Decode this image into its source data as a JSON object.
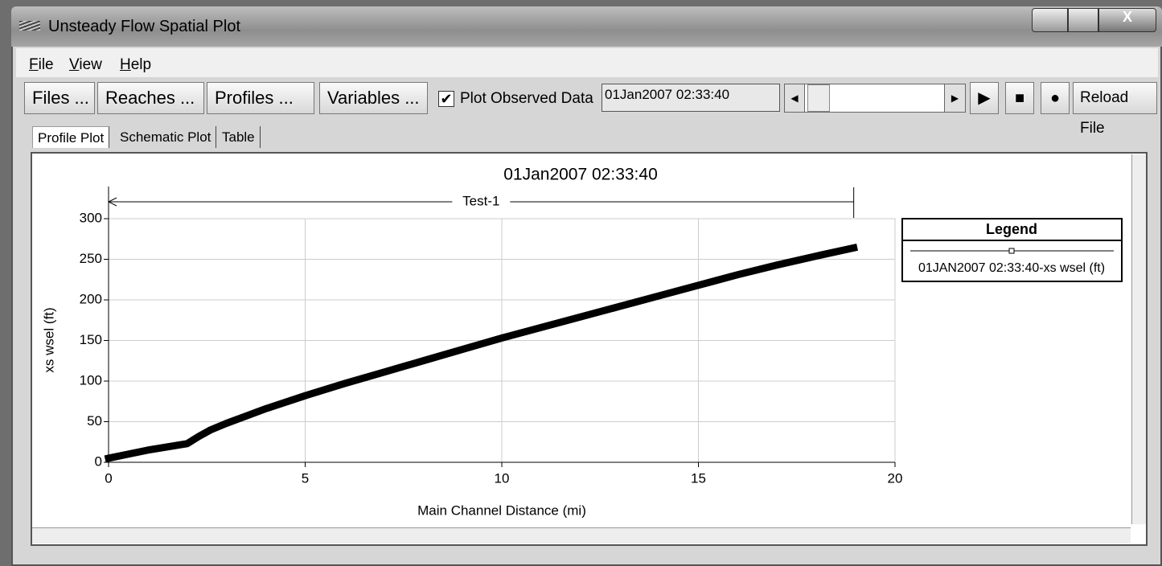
{
  "window": {
    "title": "Unsteady Flow Spatial Plot",
    "menu": [
      "File",
      "View",
      "Help"
    ],
    "buttons": [
      "Files ...",
      "Reaches ...",
      "Profiles ...",
      "Variables ..."
    ],
    "checkbox": {
      "label": "Plot Observed Data",
      "checked": true
    },
    "time_field": "01Jan2007 02:33:40",
    "reload_button": "Reload File",
    "tabs": [
      "Profile Plot",
      "Schematic Plot",
      "Table"
    ],
    "active_tab": 0
  },
  "chart_data": {
    "type": "line",
    "title": "01Jan2007 02:33:40",
    "x_label": "Main Channel Distance (mi)",
    "y_label": "xs wsel (ft)",
    "x": [
      0,
      0.5,
      1,
      1.5,
      2,
      2.3,
      2.6,
      3,
      3.5,
      4,
      5,
      6,
      7,
      8,
      9,
      10,
      11,
      12,
      13,
      14,
      15,
      16,
      17,
      18,
      18.95
    ],
    "series": [
      {
        "name": "01JAN2007 02:33:40-xs wsel (ft)",
        "color": "#000000",
        "values": [
          5,
          10,
          15,
          19,
          23,
          32,
          40,
          48,
          57,
          66,
          82,
          97,
          111,
          125,
          139,
          153,
          166,
          179,
          192,
          205,
          218,
          231,
          243,
          254,
          264
        ]
      }
    ],
    "xlim": [
      0,
      20
    ],
    "xticks": [
      0,
      5,
      10,
      15,
      20
    ],
    "ylim": [
      0,
      300
    ],
    "yticks": [
      0,
      50,
      100,
      150,
      200,
      250,
      300
    ],
    "grid": true,
    "legend_title": "Legend",
    "annotation": {
      "text": "Test-1",
      "x_start": 0,
      "x_end": 18.95
    }
  }
}
